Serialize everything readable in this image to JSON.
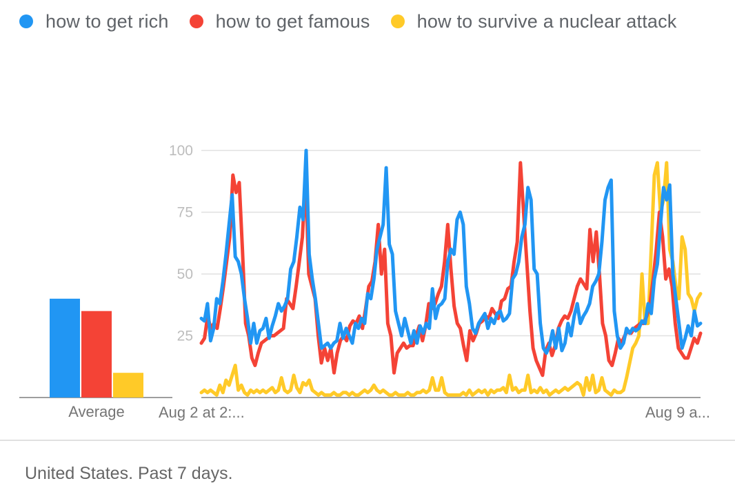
{
  "legend": {
    "items": [
      {
        "label": "how to get rich",
        "color": "#2196F3"
      },
      {
        "label": "how to get famous",
        "color": "#F44336"
      },
      {
        "label": "how to survive a nuclear attack",
        "color": "#FFCA28"
      }
    ]
  },
  "footer": {
    "text": "United States. Past 7 days."
  },
  "chart_data": [
    {
      "type": "bar",
      "categories": [
        "how to get rich",
        "how to get famous",
        "how to survive a nuclear attack"
      ],
      "values": [
        40,
        35,
        10
      ],
      "colors": [
        "#2196F3",
        "#F44336",
        "#FFCA28"
      ],
      "xlabel": "Average",
      "ylim": [
        0,
        100
      ]
    },
    {
      "type": "line",
      "x_labels": [
        "Aug 2 at 2:...",
        "Aug 9 a..."
      ],
      "yticks": [
        25,
        50,
        75,
        100
      ],
      "ylim": [
        0,
        100
      ],
      "grid": true,
      "series": [
        {
          "name": "how to get rich",
          "color": "#2196F3",
          "values": [
            32,
            31,
            38,
            23,
            28,
            40,
            38,
            47,
            58,
            70,
            82,
            57,
            55,
            50,
            40,
            32,
            22,
            30,
            22,
            27,
            28,
            32,
            24,
            29,
            33,
            38,
            35,
            37,
            40,
            52,
            55,
            65,
            77,
            72,
            100,
            58,
            48,
            40,
            30,
            20,
            21,
            22,
            20,
            22,
            23,
            30,
            24,
            28,
            25,
            22,
            30,
            28,
            32,
            30,
            42,
            40,
            48,
            60,
            65,
            70,
            93,
            62,
            58,
            35,
            30,
            25,
            32,
            27,
            22,
            27,
            22,
            29,
            26,
            30,
            28,
            44,
            32,
            37,
            38,
            40,
            55,
            60,
            58,
            72,
            75,
            70,
            45,
            38,
            28,
            26,
            30,
            32,
            34,
            28,
            32,
            30,
            34,
            35,
            31,
            32,
            34,
            48,
            50,
            55,
            65,
            70,
            85,
            80,
            52,
            50,
            30,
            20,
            18,
            21,
            27,
            20,
            28,
            19,
            22,
            30,
            25,
            33,
            38,
            30,
            33,
            35,
            38,
            45,
            47,
            50,
            63,
            80,
            85,
            88,
            35,
            25,
            20,
            22,
            28,
            26,
            28,
            27,
            28,
            31,
            30,
            38,
            34,
            48,
            54,
            70,
            85,
            80,
            86,
            50,
            40,
            30,
            20,
            24,
            29,
            25,
            35,
            29,
            30
          ]
        },
        {
          "name": "how to get famous",
          "color": "#F44336",
          "values": [
            22,
            24,
            33,
            28,
            30,
            28,
            36,
            45,
            55,
            65,
            90,
            83,
            87,
            60,
            30,
            25,
            16,
            13,
            18,
            22,
            23,
            24,
            25,
            25,
            26,
            27,
            28,
            40,
            38,
            36,
            45,
            55,
            65,
            90,
            50,
            45,
            40,
            25,
            14,
            20,
            15,
            20,
            10,
            18,
            23,
            25,
            23,
            29,
            31,
            30,
            33,
            28,
            36,
            45,
            47,
            55,
            70,
            50,
            60,
            30,
            25,
            10,
            18,
            20,
            22,
            20,
            21,
            21,
            25,
            29,
            23,
            29,
            38,
            36,
            38,
            42,
            45,
            55,
            70,
            52,
            37,
            30,
            28,
            21,
            15,
            27,
            23,
            26,
            30,
            31,
            33,
            32,
            36,
            34,
            32,
            39,
            40,
            44,
            45,
            55,
            63,
            95,
            75,
            55,
            35,
            20,
            15,
            12,
            9,
            19,
            22,
            17,
            21,
            28,
            31,
            33,
            32,
            35,
            40,
            45,
            48,
            46,
            44,
            68,
            55,
            67,
            50,
            30,
            25,
            15,
            13,
            18,
            24,
            22,
            25,
            27,
            26,
            28,
            29,
            30,
            30,
            33,
            38,
            48,
            60,
            75,
            65,
            48,
            52,
            45,
            30,
            20,
            18,
            16,
            16,
            20,
            24,
            22,
            26
          ]
        },
        {
          "name": "how to survive a nuclear attack",
          "color": "#FFCA28",
          "values": [
            2,
            3,
            2,
            3,
            2,
            1,
            5,
            2,
            7,
            5,
            9,
            13,
            3,
            5,
            2,
            1,
            3,
            2,
            3,
            2,
            3,
            2,
            3,
            4,
            2,
            3,
            8,
            3,
            2,
            3,
            9,
            4,
            2,
            6,
            5,
            7,
            3,
            2,
            1,
            2,
            1,
            1,
            1,
            2,
            1,
            1,
            2,
            2,
            1,
            2,
            1,
            1,
            2,
            3,
            2,
            3,
            5,
            3,
            2,
            3,
            2,
            1,
            1,
            2,
            1,
            1,
            1,
            2,
            1,
            1,
            2,
            2,
            3,
            2,
            3,
            8,
            3,
            3,
            8,
            2,
            1,
            1,
            1,
            1,
            1,
            2,
            1,
            3,
            1,
            2,
            3,
            2,
            3,
            1,
            3,
            2,
            3,
            3,
            4,
            2,
            9,
            3,
            4,
            2,
            3,
            3,
            9,
            2,
            3,
            2,
            4,
            2,
            3,
            1,
            2,
            3,
            2,
            3,
            4,
            3,
            4,
            5,
            6,
            5,
            1,
            8,
            3,
            9,
            2,
            3,
            8,
            3,
            2,
            1,
            3,
            2,
            2,
            3,
            8,
            14,
            20,
            22,
            25,
            50,
            30,
            30,
            60,
            90,
            95,
            75,
            80,
            95,
            60,
            55,
            45,
            40,
            65,
            60,
            42,
            40,
            35,
            40,
            42
          ]
        }
      ]
    }
  ]
}
